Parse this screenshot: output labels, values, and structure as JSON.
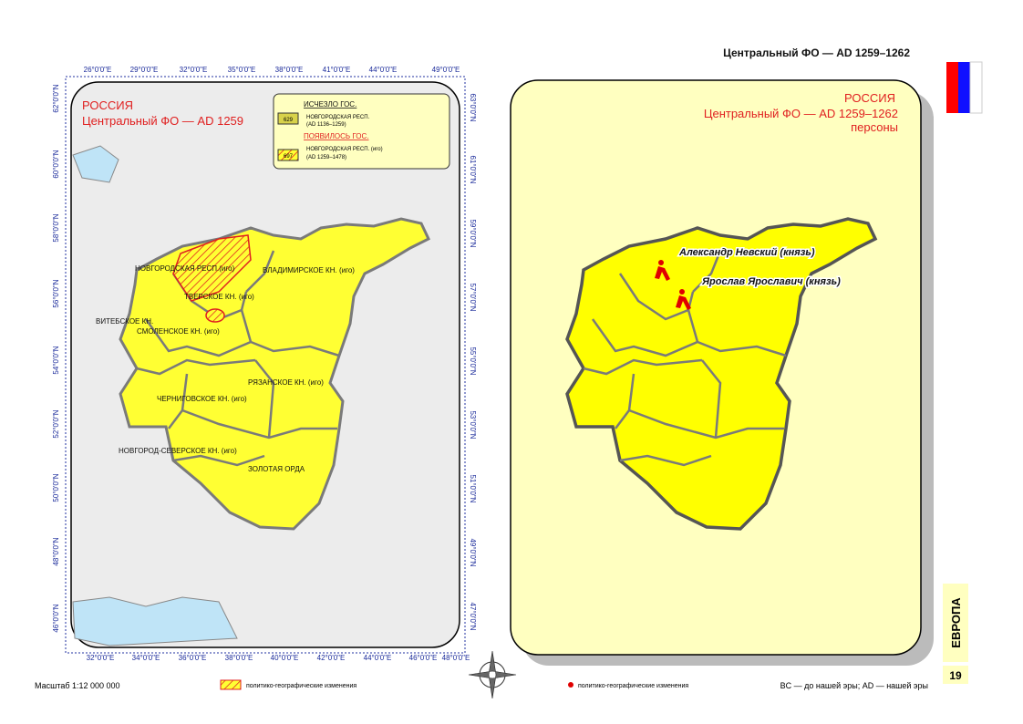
{
  "header": {
    "title": "Центральный ФО — AD 1259–1262"
  },
  "left_map": {
    "title": "РОССИЯ",
    "subtitle": "Центральный ФО — AD 1259",
    "legend": {
      "gone_heading": "ИСЧЕЗЛО ГОС.",
      "gone_code": "629",
      "gone_name": "НОВГОРОДСКАЯ РЕСП.",
      "gone_dates": "(AD 1136–1259)",
      "new_heading": "ПОЯВИЛОСЬ ГОС.",
      "new_code": "697",
      "new_name": "НОВГОРОДСКАЯ РЕСП. (иго)",
      "new_dates": "(AD 1259–1478)"
    },
    "top_ticks": [
      "26°0'0\"E",
      "29°0'0\"E",
      "32°0'0\"E",
      "35°0'0\"E",
      "38°0'0\"E",
      "41°0'0\"E",
      "44°0'0\"E",
      "49°0'0\"E"
    ],
    "bottom_ticks": [
      "32°0'0\"E",
      "34°0'0\"E",
      "36°0'0\"E",
      "38°0'0\"E",
      "40°0'0\"E",
      "42°0'0\"E",
      "44°0'0\"E",
      "46°0'0\"E",
      "48°0'0\"E"
    ],
    "left_ticks": [
      "62°0'0\"N",
      "60°0'0\"N",
      "58°0'0\"N",
      "56°0'0\"N",
      "54°0'0\"N",
      "52°0'0\"N",
      "50°0'0\"N",
      "48°0'0\"N",
      "46°0'0\"N"
    ],
    "right_ticks": [
      "63°0'0\"N",
      "61°0'0\"N",
      "59°0'0\"N",
      "57°0'0\"N",
      "55°0'0\"N",
      "53°0'0\"N",
      "51°0'0\"N",
      "49°0'0\"N",
      "47°0'0\"N"
    ],
    "regions": [
      "НОВГОРОДСКАЯ РЕСП.(иго)",
      "ВЛАДИМИРСКОЕ КН. (иго)",
      "ТВЕРСКОЕ КН. (иго)",
      "ВИТЕБСКОЕ КН.",
      "СМОЛЕНСКОЕ КН. (иго)",
      "РЯЗАНСКОЕ КН. (иго)",
      "ЧЕРНИГОВСКОЕ КН. (иго)",
      "НОВГОРОД-СЕВЕРСКОЕ КН. (иго)",
      "ЗОЛОТАЯ ОРДА"
    ]
  },
  "right_map": {
    "title": "РОССИЯ",
    "subtitle": "Центральный ФО — AD 1259–1262",
    "subtitle2": "персоны",
    "persons": [
      "Александр Невский (князь)",
      "Ярослав Ярославич (князь)"
    ]
  },
  "footer": {
    "scale": "Масштаб 1:12 000 000",
    "legend_hatched": "политико-географические изменения",
    "legend_dot": "политико-географические изменения",
    "era_note": "BC — до нашей эры; AD — нашей эры",
    "section": "ЕВРОПА",
    "page": "19"
  }
}
